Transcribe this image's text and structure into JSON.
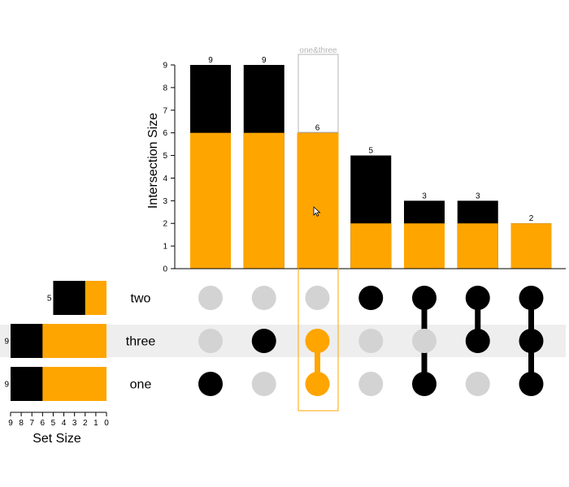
{
  "chart_data": {
    "type": "upset",
    "y_axis_title": "Intersection Size",
    "y_ticks": [
      "0",
      "1",
      "2",
      "3",
      "4",
      "5",
      "6",
      "7",
      "8",
      "9"
    ],
    "ylim": [
      0,
      9
    ],
    "set_size_title": "Set Size",
    "set_size_ticks": [
      "9",
      "8",
      "7",
      "6",
      "5",
      "4",
      "3",
      "2",
      "1",
      "0"
    ],
    "set_size_lim": [
      0,
      9
    ],
    "sets": [
      {
        "name": "two",
        "size": 5,
        "size_label": "5",
        "highlighted": 2
      },
      {
        "name": "three",
        "size": 9,
        "size_label": "9",
        "highlighted": 6
      },
      {
        "name": "one",
        "size": 9,
        "size_label": "9",
        "highlighted": 6
      }
    ],
    "intersections": [
      {
        "name": "one",
        "members": [
          "one"
        ],
        "value": 9,
        "label": "9",
        "highlighted": 6
      },
      {
        "name": "three",
        "members": [
          "three"
        ],
        "value": 9,
        "label": "9",
        "highlighted": 6
      },
      {
        "name": "one&three",
        "members": [
          "three",
          "one"
        ],
        "value": 6,
        "label": "6",
        "highlighted": 6
      },
      {
        "name": "two",
        "members": [
          "two"
        ],
        "value": 5,
        "label": "5",
        "highlighted": 2
      },
      {
        "name": "one&two",
        "members": [
          "two",
          "one"
        ],
        "value": 3,
        "label": "3",
        "highlighted": 2
      },
      {
        "name": "three&two",
        "members": [
          "two",
          "three"
        ],
        "value": 3,
        "label": "3",
        "highlighted": 2
      },
      {
        "name": "one&three&two",
        "members": [
          "two",
          "three",
          "one"
        ],
        "value": 2,
        "label": "2",
        "highlighted": 2
      }
    ],
    "highlight": {
      "intersection": "one&three",
      "label": "one&three",
      "color": "#ffa500"
    },
    "hover_row": "three"
  },
  "colors": {
    "base": "#000000",
    "highlight": "#ffa500",
    "inactive_dot": "#d3d3d3",
    "row_hover": "#eeeeee",
    "hover_frame": "#b5b5b5"
  },
  "cursor": "arrow-cursor-icon"
}
